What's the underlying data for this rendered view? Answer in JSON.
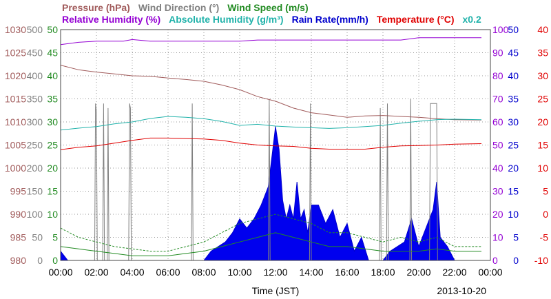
{
  "chart_data": {
    "type": "line",
    "date": "2013-10-20",
    "xlabel": "Time (JST)",
    "x_ticks": [
      "00:00",
      "02:00",
      "04:00",
      "06:00",
      "08:00",
      "10:00",
      "12:00",
      "14:00",
      "16:00",
      "18:00",
      "20:00",
      "22:00",
      "00:00"
    ],
    "x_range_hours": [
      0,
      24
    ],
    "grid": true,
    "legend": [
      {
        "key": "pressure",
        "label": "Pressure (hPa)",
        "color": "#a05a5a",
        "row": 1
      },
      {
        "key": "wind_dir",
        "label": "Wind Direction (°)",
        "color": "#808080",
        "row": 1
      },
      {
        "key": "wind_speed",
        "label": "Wind Speed (m/s)",
        "color": "#228b22",
        "row": 1
      },
      {
        "key": "humidity",
        "label": "Relative Humidity (%)",
        "color": "#9400d3",
        "row": 2
      },
      {
        "key": "abs_humidity",
        "label": "Absolute Humidity (g/m³)",
        "color": "#20b2aa",
        "row": 2
      },
      {
        "key": "rain",
        "label": "Rain Rate(mm/h)",
        "color": "#0000cd",
        "row": 2
      },
      {
        "key": "temperature",
        "label": "Temperature (°C)",
        "color": "#e00000",
        "row": 2
      },
      {
        "key": "multiplier",
        "label": "x0.2",
        "color": "#20b2aa",
        "row": 2
      }
    ],
    "axes": {
      "pressure": {
        "min": 980,
        "max": 1030,
        "ticks": [
          "980",
          "985",
          "990",
          "995",
          "1000",
          "1005",
          "1010",
          "1015",
          "1020",
          "1025",
          "1030"
        ],
        "color": "#a05a5a"
      },
      "wind_dir": {
        "min": 0,
        "max": 500,
        "ticks": [
          "0",
          "50",
          "100",
          "150",
          "200",
          "250",
          "300",
          "350",
          "400",
          "450",
          "500"
        ],
        "color": "#808080"
      },
      "wind_speed": {
        "min": 0,
        "max": 50,
        "ticks": [
          "0",
          "5",
          "10",
          "15",
          "20",
          "25",
          "30",
          "35",
          "40",
          "45",
          "50"
        ],
        "color": "#228b22"
      },
      "humidity": {
        "min": 0,
        "max": 100,
        "ticks": [
          "0",
          "10",
          "20",
          "30",
          "40",
          "50",
          "60",
          "70",
          "80",
          "90",
          "100"
        ],
        "color": "#9400d3"
      },
      "rain": {
        "min": 0,
        "max": 50,
        "ticks": [
          "0",
          "5",
          "10",
          "15",
          "20",
          "25",
          "30",
          "35",
          "40",
          "45",
          "50"
        ],
        "color": "#0000cd"
      },
      "temperature": {
        "min": -10,
        "max": 40,
        "ticks": [
          "-10",
          "-5",
          "0",
          "5",
          "10",
          "15",
          "20",
          "25",
          "30",
          "35",
          "40"
        ],
        "color": "#e00000"
      }
    },
    "series": {
      "pressure": {
        "axis": "pressure",
        "x": [
          0,
          1,
          2,
          3,
          4,
          5,
          6,
          7,
          8,
          9,
          10,
          11,
          12,
          13,
          14,
          15,
          16,
          17,
          18,
          19,
          20,
          21,
          22,
          23.5
        ],
        "y": [
          1022.3,
          1021.3,
          1020.8,
          1020.4,
          1020,
          1019.9,
          1019.5,
          1019.2,
          1018.8,
          1018,
          1017,
          1015.5,
          1014.5,
          1013,
          1012,
          1011.5,
          1011,
          1011.3,
          1011.4,
          1011.2,
          1011,
          1010.7,
          1010.5,
          1010.4
        ]
      },
      "humidity": {
        "axis": "humidity",
        "x": [
          0,
          1,
          2,
          3.5,
          4,
          5,
          6,
          9,
          10,
          11,
          12,
          14,
          16,
          19,
          20,
          22,
          23.5
        ],
        "y": [
          93.5,
          94.5,
          95,
          95,
          95.7,
          95,
          95,
          95,
          95,
          95.5,
          95.5,
          95.5,
          95.5,
          95.5,
          96.5,
          96.5,
          96.5
        ]
      },
      "abs_humidity": {
        "axis": "humidity",
        "x": [
          0,
          1,
          2,
          3,
          4,
          5,
          6,
          7,
          8,
          9,
          10,
          11,
          12,
          13,
          14,
          15,
          16,
          17,
          18,
          19,
          20,
          21,
          22,
          23.5
        ],
        "y": [
          56.5,
          57.3,
          58,
          59.2,
          60,
          61.5,
          62.4,
          62,
          61.4,
          60.2,
          58.5,
          59,
          58.2,
          57.8,
          57.5,
          57.2,
          57.5,
          58,
          58.5,
          59.5,
          60.3,
          61,
          61.2,
          61
        ]
      },
      "temperature": {
        "axis": "temperature",
        "x": [
          0,
          1,
          2,
          3,
          4,
          5,
          6,
          7,
          8,
          9,
          10,
          11,
          12,
          13,
          14,
          15,
          16,
          17,
          18,
          19,
          20,
          21,
          22,
          23.5
        ],
        "y": [
          14,
          14.5,
          14.8,
          15.4,
          16,
          16.5,
          16.5,
          16.4,
          16.3,
          16,
          15.4,
          15,
          14.8,
          14.7,
          14.3,
          14.1,
          14.1,
          14.1,
          14.5,
          14.8,
          14.9,
          15,
          15.2,
          15.3
        ]
      },
      "rain": {
        "axis": "rain",
        "x": [
          0,
          0.4,
          0.8,
          1.2,
          1.6,
          2,
          2.4,
          2.8,
          3.2,
          3.6,
          4,
          4.4,
          4.8,
          5.2,
          5.6,
          6,
          6.4,
          6.8,
          7.2,
          7.6,
          8,
          8.4,
          8.8,
          9.2,
          9.6,
          10,
          10.4,
          10.8,
          11.2,
          11.6,
          12,
          12.2,
          12.4,
          12.6,
          12.8,
          13,
          13.2,
          13.4,
          13.6,
          13.8,
          14,
          14.4,
          14.8,
          15.2,
          15.6,
          16,
          16.4,
          16.8,
          17.2,
          17.6,
          18,
          18.4,
          18.8,
          19.2,
          19.6,
          20,
          20.4,
          20.8,
          21,
          21.2,
          21.6,
          22,
          23.5
        ],
        "y": [
          2,
          0,
          0,
          0,
          0,
          0,
          0,
          0,
          0,
          0,
          0,
          0,
          0,
          0,
          0,
          0,
          0,
          0,
          0,
          0,
          0,
          2,
          3,
          4,
          6,
          9,
          7,
          9,
          12,
          16,
          29,
          24,
          13,
          9,
          12,
          9,
          17,
          9,
          11,
          6,
          12,
          12,
          8,
          11,
          5,
          8,
          2,
          5,
          0,
          0,
          0,
          2,
          3,
          4,
          9,
          3,
          7,
          11,
          17,
          5,
          3,
          0,
          0
        ]
      },
      "wind_dir": {
        "axis": "wind_dir",
        "x": [
          0,
          1.9,
          1.95,
          2,
          2.05,
          2.1,
          2.35,
          2.4,
          2.45,
          2.5,
          2.6,
          2.65,
          2.7,
          2.75,
          3.8,
          3.85,
          3.9,
          3.95,
          7.3,
          7.35,
          7.4,
          7.45,
          11.6,
          11.65,
          11.7,
          11.75,
          13.9,
          13.95,
          14,
          14.05,
          17.8,
          17.85,
          17.9,
          17.95,
          18.2,
          18.25,
          18.3,
          18.35,
          19.5,
          19.55,
          19.6,
          19.65,
          20.6,
          20.65,
          20.9,
          21,
          21.05,
          21.1,
          23.5
        ],
        "y": [
          0,
          0,
          340,
          320,
          0,
          0,
          0,
          340,
          0,
          0,
          0,
          330,
          0,
          0,
          0,
          340,
          330,
          0,
          0,
          340,
          0,
          0,
          0,
          350,
          0,
          0,
          0,
          340,
          0,
          0,
          0,
          330,
          0,
          0,
          0,
          340,
          0,
          0,
          0,
          350,
          0,
          0,
          0,
          340,
          340,
          340,
          0,
          0,
          0
        ]
      },
      "wind_speed": {
        "axis": "wind_speed",
        "x": [
          0,
          1,
          2,
          3,
          4,
          5,
          6,
          7,
          8,
          9,
          10,
          11,
          12,
          13,
          14,
          15,
          16,
          17,
          18,
          19,
          20,
          21,
          22,
          23.5
        ],
        "y": [
          3,
          2.5,
          2,
          1.5,
          1,
          1,
          1,
          1.5,
          2,
          3,
          4,
          5,
          6,
          5,
          4,
          3,
          3,
          2.5,
          2,
          2,
          2,
          2.5,
          2,
          2
        ]
      },
      "wind_speed_gust": {
        "axis": "wind_speed",
        "x": [
          0,
          1,
          2,
          3,
          4,
          5,
          6,
          7,
          8,
          9,
          10,
          11,
          12,
          13,
          14,
          15,
          16,
          17,
          18,
          19,
          20,
          21,
          22,
          23.5
        ],
        "y": [
          7,
          5,
          4,
          3,
          2.5,
          2,
          2,
          3,
          4,
          6,
          8,
          9,
          10,
          9,
          8,
          6,
          6,
          5,
          4,
          5,
          4,
          5,
          3,
          3
        ]
      }
    }
  }
}
